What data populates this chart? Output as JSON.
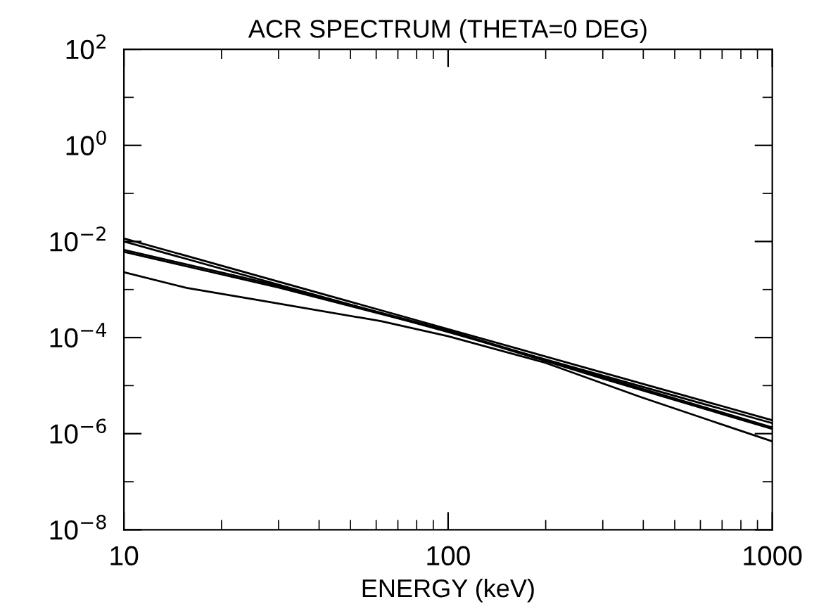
{
  "chart_data": {
    "type": "line",
    "title": "ACR SPECTRUM (THETA=0 DEG)",
    "xlabel": "ENERGY (keV)",
    "log": "xy",
    "xlim": [
      10,
      1000
    ],
    "ylim": [
      1e-08,
      100
    ],
    "xticks": [
      10,
      {
        "value": 20,
        "label": null
      },
      {
        "value": 30,
        "label": null
      },
      {
        "value": 40,
        "label": null
      },
      {
        "value": 50,
        "label": null
      },
      {
        "value": 60,
        "label": null
      },
      {
        "value": 70,
        "label": null
      },
      {
        "value": 80,
        "label": null
      },
      {
        "value": 90,
        "label": null
      },
      100,
      {
        "value": 200,
        "label": null
      },
      {
        "value": 300,
        "label": null
      },
      {
        "value": 400,
        "label": null
      },
      {
        "value": 500,
        "label": null
      },
      {
        "value": 600,
        "label": null
      },
      {
        "value": 700,
        "label": null
      },
      {
        "value": 800,
        "label": null
      },
      {
        "value": 900,
        "label": null
      },
      1000
    ],
    "yticks": [
      {
        "value": 1e-08,
        "label": "10$^{−8}$"
      },
      {
        "value": 1e-07,
        "label": null
      },
      {
        "value": 1e-06,
        "label": "10$^{−6}$"
      },
      {
        "value": 1e-05,
        "label": null
      },
      {
        "value": 0.0001,
        "label": "10$^{−4}$"
      },
      {
        "value": 0.001,
        "label": null
      },
      {
        "value": 0.01,
        "label": "10$^{−2}$"
      },
      {
        "value": 0.1,
        "label": null
      },
      {
        "value": 1,
        "label": "10$^{0}$"
      },
      {
        "value": 10,
        "label": null
      },
      {
        "value": 100,
        "label": "10$^{2}$"
      }
    ],
    "grid": false,
    "legend": false,
    "marker": "none",
    "line_style": "solid",
    "series": [
      {
        "color": "#000000",
        "x": [
          10,
          100,
          1000
        ],
        "values": [
          0.0116,
          0.00015,
          1.9e-06
        ]
      },
      {
        "color": "#000000",
        "x": [
          10,
          100,
          1000
        ],
        "values": [
          0.01,
          0.00013,
          1.65e-06
        ]
      },
      {
        "color": "#000000",
        "x": [
          10,
          30,
          100,
          300,
          1000
        ],
        "values": [
          0.0067,
          0.0012,
          0.00014,
          1.5e-05,
          1.35e-06
        ]
      },
      {
        "color": "#000000",
        "x": [
          10,
          30,
          100,
          300,
          1000
        ],
        "values": [
          0.0061,
          0.0011,
          0.000135,
          1.4e-05,
          1.25e-06
        ]
      },
      {
        "color": "#000000",
        "x": [
          10,
          15.6,
          25.7,
          62,
          100,
          199,
          392,
          1000
        ],
        "values": [
          0.0023,
          0.00108,
          0.00061,
          0.00022,
          0.000107,
          3e-05,
          5.8e-06,
          6.9e-07
        ]
      }
    ]
  }
}
